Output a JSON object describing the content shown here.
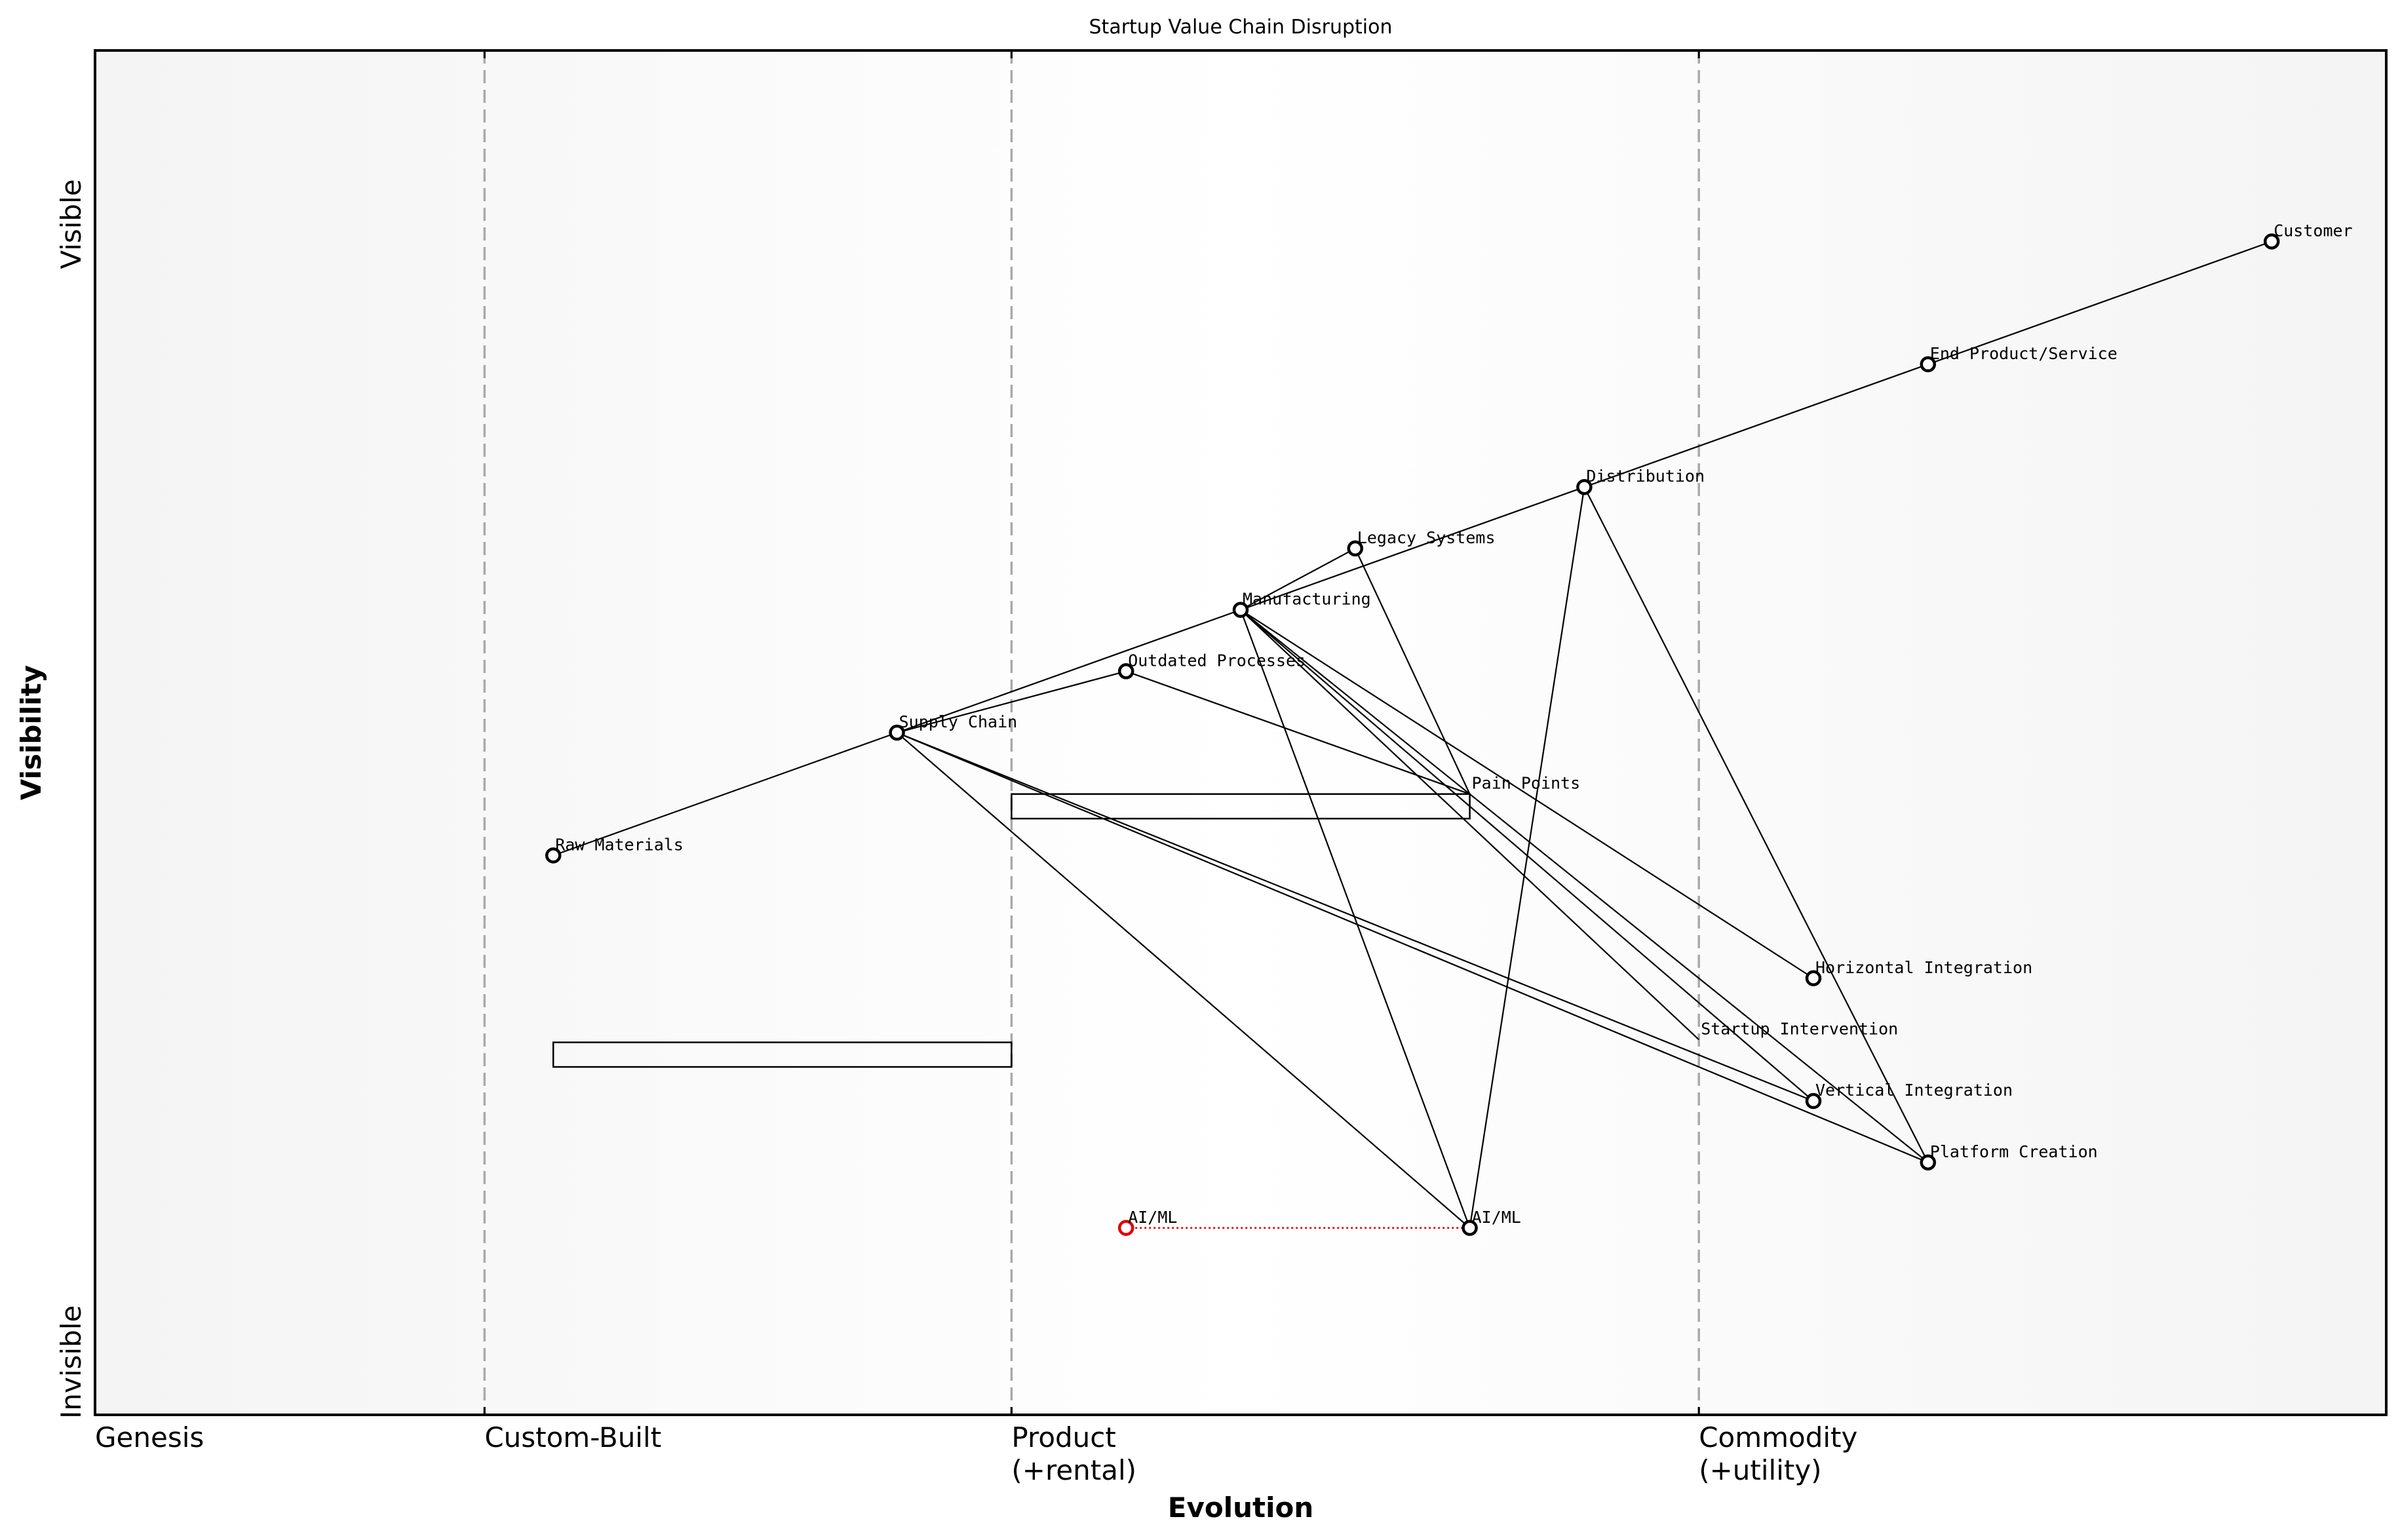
{
  "chart_data": {
    "type": "wardley-map",
    "title": "Startup Value Chain Disruption",
    "xlabel": "Evolution",
    "ylabel": "Visibility",
    "y_ticks": [
      "Invisible",
      "Visible"
    ],
    "x_stages": [
      {
        "label": "Genesis",
        "x": 0.0
      },
      {
        "label": "Custom-Built",
        "x": 0.17
      },
      {
        "label": "Product\n(+rental)",
        "x": 0.4
      },
      {
        "label": "Commodity\n(+utility)",
        "x": 0.7
      }
    ],
    "xlim": [
      0,
      1
    ],
    "ylim": [
      0,
      1
    ],
    "components": [
      {
        "id": "customer",
        "name": "Customer",
        "x": 0.95,
        "y": 0.86
      },
      {
        "id": "end_product",
        "name": "End Product/Service",
        "x": 0.8,
        "y": 0.77
      },
      {
        "id": "distribution",
        "name": "Distribution",
        "x": 0.65,
        "y": 0.68
      },
      {
        "id": "legacy",
        "name": "Legacy Systems",
        "x": 0.55,
        "y": 0.635
      },
      {
        "id": "manufacturing",
        "name": "Manufacturing",
        "x": 0.5,
        "y": 0.59
      },
      {
        "id": "outdated",
        "name": "Outdated Processes",
        "x": 0.45,
        "y": 0.545
      },
      {
        "id": "supply_chain",
        "name": "Supply Chain",
        "x": 0.35,
        "y": 0.5
      },
      {
        "id": "raw_materials",
        "name": "Raw Materials",
        "x": 0.2,
        "y": 0.41
      },
      {
        "id": "pain_points",
        "name": "Pain Points",
        "x": 0.6,
        "y": 0.455
      },
      {
        "id": "horizontal",
        "name": "Horizontal Integration",
        "x": 0.75,
        "y": 0.32
      },
      {
        "id": "startup",
        "name": "Startup Intervention",
        "x": 0.7,
        "y": 0.275
      },
      {
        "id": "vertical",
        "name": "Vertical Integration",
        "x": 0.75,
        "y": 0.23
      },
      {
        "id": "platform",
        "name": "Platform Creation",
        "x": 0.8,
        "y": 0.185
      },
      {
        "id": "aiml",
        "name": "AI/ML",
        "x": 0.6,
        "y": 0.137
      },
      {
        "id": "aiml_old",
        "name": "AI/ML",
        "x": 0.45,
        "y": 0.137,
        "color": "#e00000",
        "note": "evolution source"
      }
    ],
    "links": [
      [
        "customer",
        "end_product"
      ],
      [
        "end_product",
        "distribution"
      ],
      [
        "distribution",
        "manufacturing"
      ],
      [
        "manufacturing",
        "supply_chain"
      ],
      [
        "supply_chain",
        "raw_materials"
      ],
      [
        "manufacturing",
        "legacy"
      ],
      [
        "supply_chain",
        "outdated"
      ],
      [
        "legacy",
        "pain_points"
      ],
      [
        "outdated",
        "pain_points"
      ],
      [
        "manufacturing",
        "horizontal"
      ],
      [
        "manufacturing",
        "startup"
      ],
      [
        "manufacturing",
        "vertical"
      ],
      [
        "manufacturing",
        "platform"
      ],
      [
        "manufacturing",
        "aiml"
      ],
      [
        "distribution",
        "aiml"
      ],
      [
        "distribution",
        "platform"
      ],
      [
        "supply_chain",
        "aiml"
      ],
      [
        "supply_chain",
        "vertical"
      ],
      [
        "supply_chain",
        "platform"
      ]
    ],
    "evolution_arrows": [
      {
        "from": "aiml_old",
        "to": "aiml",
        "style": "dotted",
        "color": "#e00000"
      }
    ],
    "annotation_boxes": [
      {
        "x0": 0.4,
        "x1": 0.6,
        "y0": 0.437,
        "y1": 0.455
      },
      {
        "x0": 0.2,
        "x1": 0.4,
        "y0": 0.255,
        "y1": 0.273
      }
    ]
  },
  "colors": {
    "red": "#e00000",
    "divider": "#aaaaaa",
    "background_edge": "#f4f4f4",
    "background_center": "#ffffff"
  }
}
